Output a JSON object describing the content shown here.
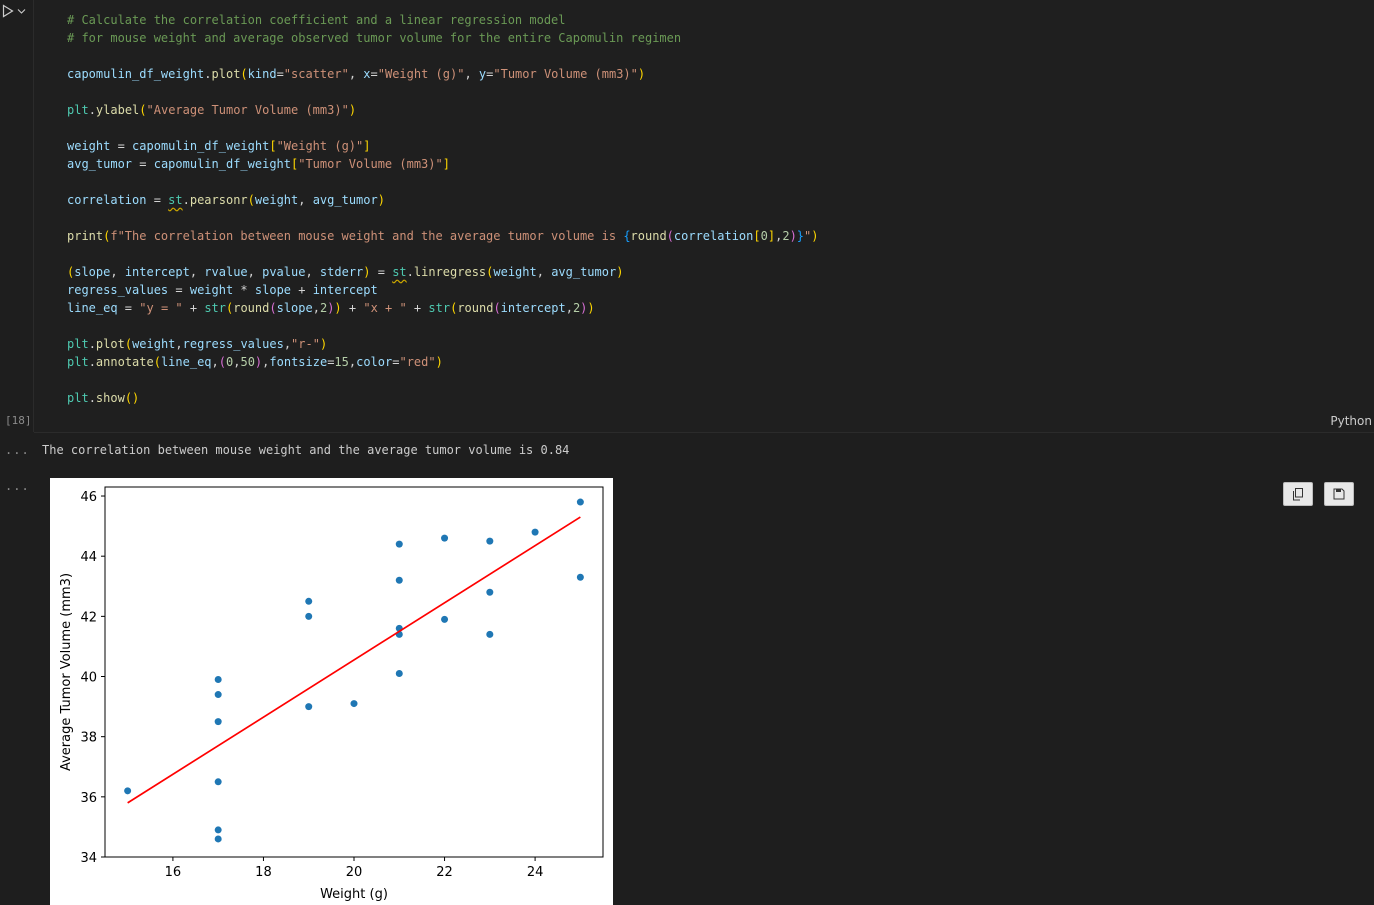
{
  "cell": {
    "execution_count": "[18]",
    "language": "Python",
    "code_lines": [
      "# Calculate the correlation coefficient and a linear regression model",
      "# for mouse weight and average observed tumor volume for the entire Capomulin regimen",
      "",
      "capomulin_df_weight.plot(kind=\"scatter\", x=\"Weight (g)\", y=\"Tumor Volume (mm3)\")",
      "",
      "plt.ylabel(\"Average Tumor Volume (mm3)\")",
      "",
      "weight = capomulin_df_weight[\"Weight (g)\"]",
      "avg_tumor = capomulin_df_weight[\"Tumor Volume (mm3)\"]",
      "",
      "correlation = st.pearsonr(weight, avg_tumor)",
      "",
      "print(f\"The correlation between mouse weight and the average tumor volume is {round(correlation[0],2)}\")",
      "",
      "(slope, intercept, rvalue, pvalue, stderr) = st.linregress(weight, avg_tumor)",
      "regress_values = weight * slope + intercept",
      "line_eq = \"y = \" + str(round(slope,2)) + \"x + \" + str(round(intercept,2))",
      "",
      "plt.plot(weight,regress_values,\"r-\")",
      "plt.annotate(line_eq,(0,50),fontsize=15,color=\"red\")",
      "",
      "plt.show()"
    ]
  },
  "output": {
    "stdout": "The correlation between mouse weight and the average tumor volume is 0.84",
    "more_label": "..."
  },
  "icons": {
    "run": "run-icon",
    "chevron": "chevron-down-icon",
    "copy": "copy-icon",
    "save": "save-icon"
  },
  "chart_data": {
    "type": "scatter",
    "xlabel": "Weight (g)",
    "ylabel": "Average Tumor Volume (mm3)",
    "xlim": [
      14.5,
      25.5
    ],
    "ylim": [
      34,
      46.3
    ],
    "xticks": [
      16,
      18,
      20,
      22,
      24
    ],
    "yticks": [
      34,
      36,
      38,
      40,
      42,
      44,
      46
    ],
    "points": [
      [
        15,
        36.2
      ],
      [
        17,
        34.6
      ],
      [
        17,
        34.9
      ],
      [
        17,
        36.5
      ],
      [
        17,
        38.5
      ],
      [
        17,
        39.4
      ],
      [
        17,
        39.9
      ],
      [
        19,
        39.0
      ],
      [
        19,
        42.0
      ],
      [
        19,
        42.5
      ],
      [
        20,
        39.1
      ],
      [
        21,
        40.1
      ],
      [
        21,
        41.4
      ],
      [
        21,
        41.6
      ],
      [
        21,
        43.2
      ],
      [
        21,
        44.4
      ],
      [
        22,
        41.9
      ],
      [
        22,
        44.6
      ],
      [
        23,
        41.4
      ],
      [
        23,
        42.8
      ],
      [
        23,
        44.5
      ],
      [
        24,
        44.8
      ],
      [
        25,
        43.3
      ],
      [
        25,
        45.8
      ]
    ],
    "point_color": "#1f77b4",
    "regression": {
      "slope": 0.95,
      "intercept": 21.55,
      "x_range": [
        15,
        25
      ],
      "color": "#ff0000"
    },
    "grid": false
  }
}
